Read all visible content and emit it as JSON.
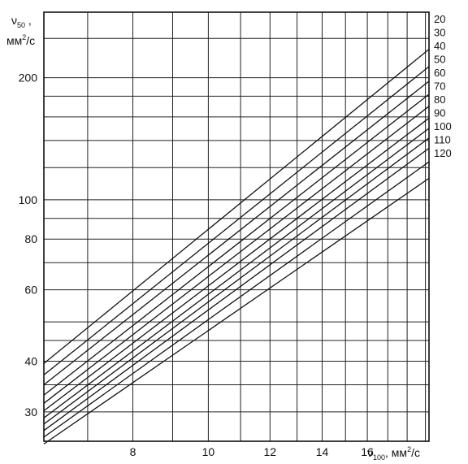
{
  "chart_data": {
    "type": "line",
    "title": "",
    "x_scale": "log",
    "y_scale": "log",
    "xlim": [
      6.15,
      19.2
    ],
    "ylim": [
      25.4,
      290
    ],
    "grid": true,
    "x_ticks": [
      8,
      10,
      12,
      14,
      16
    ],
    "x_grid": [
      7,
      8,
      9,
      10,
      11,
      12,
      13,
      14,
      15,
      16,
      17,
      18,
      19
    ],
    "y_ticks": [
      30,
      40,
      60,
      80,
      100,
      200
    ],
    "y_grid": [
      30,
      35,
      40,
      45,
      50,
      60,
      70,
      80,
      90,
      100,
      120,
      140,
      160,
      180,
      200,
      250
    ],
    "xlabel": {
      "symbol": "ν",
      "sub": "100",
      "unit": ", мм",
      "sup": "2",
      "tail": "/с"
    },
    "ylabel": {
      "symbol": "ν",
      "sub": "50",
      "comma": " ,",
      "unit": "мм",
      "sup": "2",
      "tail": "/с"
    },
    "series": [
      {
        "label": "20",
        "x": [
          6.15,
          19.2
        ],
        "y": [
          39.5,
          235
        ]
      },
      {
        "label": "30",
        "x": [
          6.15,
          19.2
        ],
        "y": [
          37.0,
          213
        ]
      },
      {
        "label": "40",
        "x": [
          6.15,
          19.2
        ],
        "y": [
          35.0,
          196
        ]
      },
      {
        "label": "50",
        "x": [
          6.15,
          19.2
        ],
        "y": [
          33.0,
          182
        ]
      },
      {
        "label": "60",
        "x": [
          6.15,
          19.2
        ],
        "y": [
          31.5,
          170
        ]
      },
      {
        "label": "70",
        "x": [
          6.15,
          19.2
        ],
        "y": [
          30.2,
          159
        ]
      },
      {
        "label": "80",
        "x": [
          6.15,
          19.2
        ],
        "y": [
          29.0,
          150
        ]
      },
      {
        "label": "90",
        "x": [
          6.15,
          19.2
        ],
        "y": [
          28.0,
          142
        ]
      },
      {
        "label": "100",
        "x": [
          6.15,
          19.2
        ],
        "y": [
          27.0,
          134
        ]
      },
      {
        "label": "110",
        "x": [
          6.15,
          19.2
        ],
        "y": [
          26.0,
          124
        ]
      },
      {
        "label": "120",
        "x": [
          6.15,
          19.2
        ],
        "y": [
          25.0,
          113
        ]
      }
    ]
  }
}
